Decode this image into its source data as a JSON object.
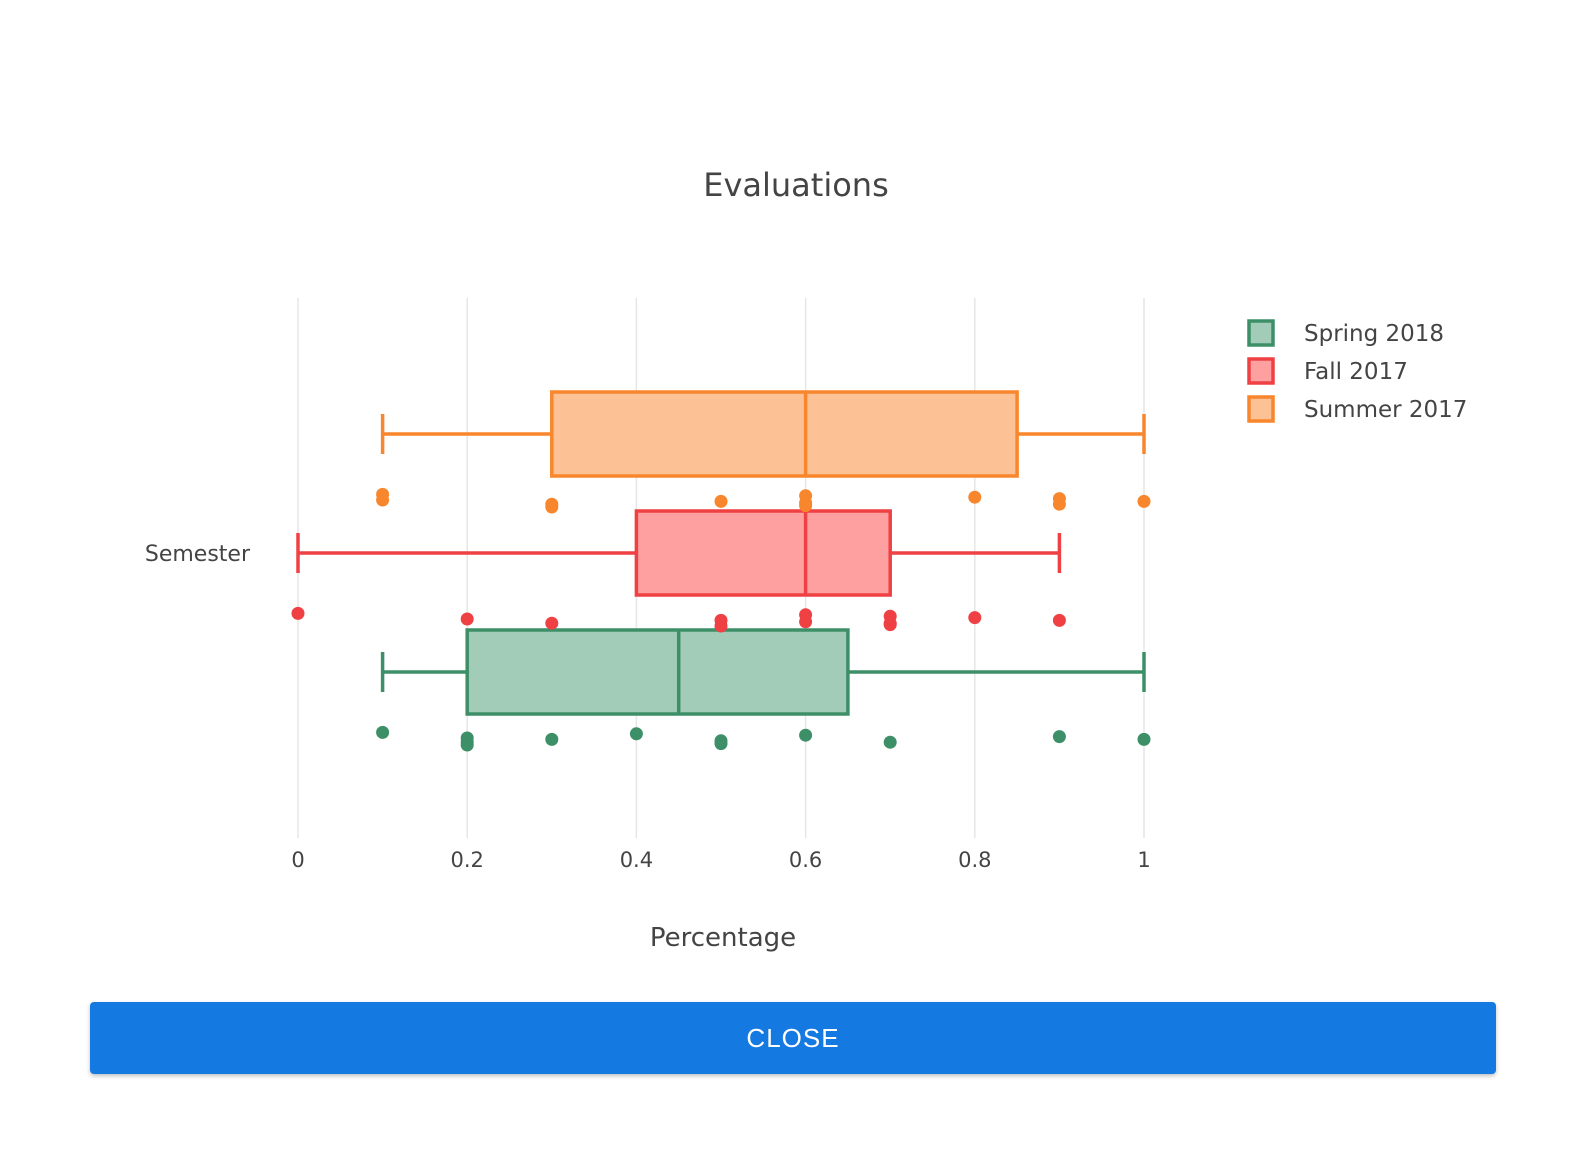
{
  "chart_data": {
    "type": "box",
    "orientation": "horizontal",
    "title": "Evaluations",
    "xlabel": "Percentage",
    "ylabel": "Semester",
    "xlim": [
      0,
      1
    ],
    "xticks": [
      "0",
      "0.2",
      "0.4",
      "0.6",
      "0.8",
      "1"
    ],
    "grid": true,
    "legend_position": "top-right",
    "series": [
      {
        "name": "Spring 2018",
        "color": "#3d8f68",
        "fill": "#a3ccb8",
        "whisker_low": 0.1,
        "q1": 0.2,
        "median": 0.45,
        "q3": 0.65,
        "whisker_high": 1.0,
        "points": [
          0.1,
          0.2,
          0.2,
          0.2,
          0.3,
          0.4,
          0.5,
          0.5,
          0.6,
          0.7,
          0.9,
          1.0
        ]
      },
      {
        "name": "Fall 2017",
        "color": "#ef4044",
        "fill": "#ffa0a0",
        "whisker_low": 0.0,
        "q1": 0.4,
        "median": 0.6,
        "q3": 0.7,
        "whisker_high": 0.9,
        "points": [
          0.0,
          0.2,
          0.3,
          0.5,
          0.5,
          0.6,
          0.6,
          0.7,
          0.7,
          0.7,
          0.8,
          0.9
        ]
      },
      {
        "name": "Summer 2017",
        "color": "#f8862c",
        "fill": "#fdc196",
        "whisker_low": 0.1,
        "q1": 0.3,
        "median": 0.6,
        "q3": 0.85,
        "whisker_high": 1.0,
        "points": [
          0.1,
          0.1,
          0.3,
          0.3,
          0.5,
          0.6,
          0.6,
          0.6,
          0.8,
          0.9,
          0.9,
          1.0
        ]
      }
    ]
  },
  "actions": {
    "close_label": "CLOSE"
  }
}
